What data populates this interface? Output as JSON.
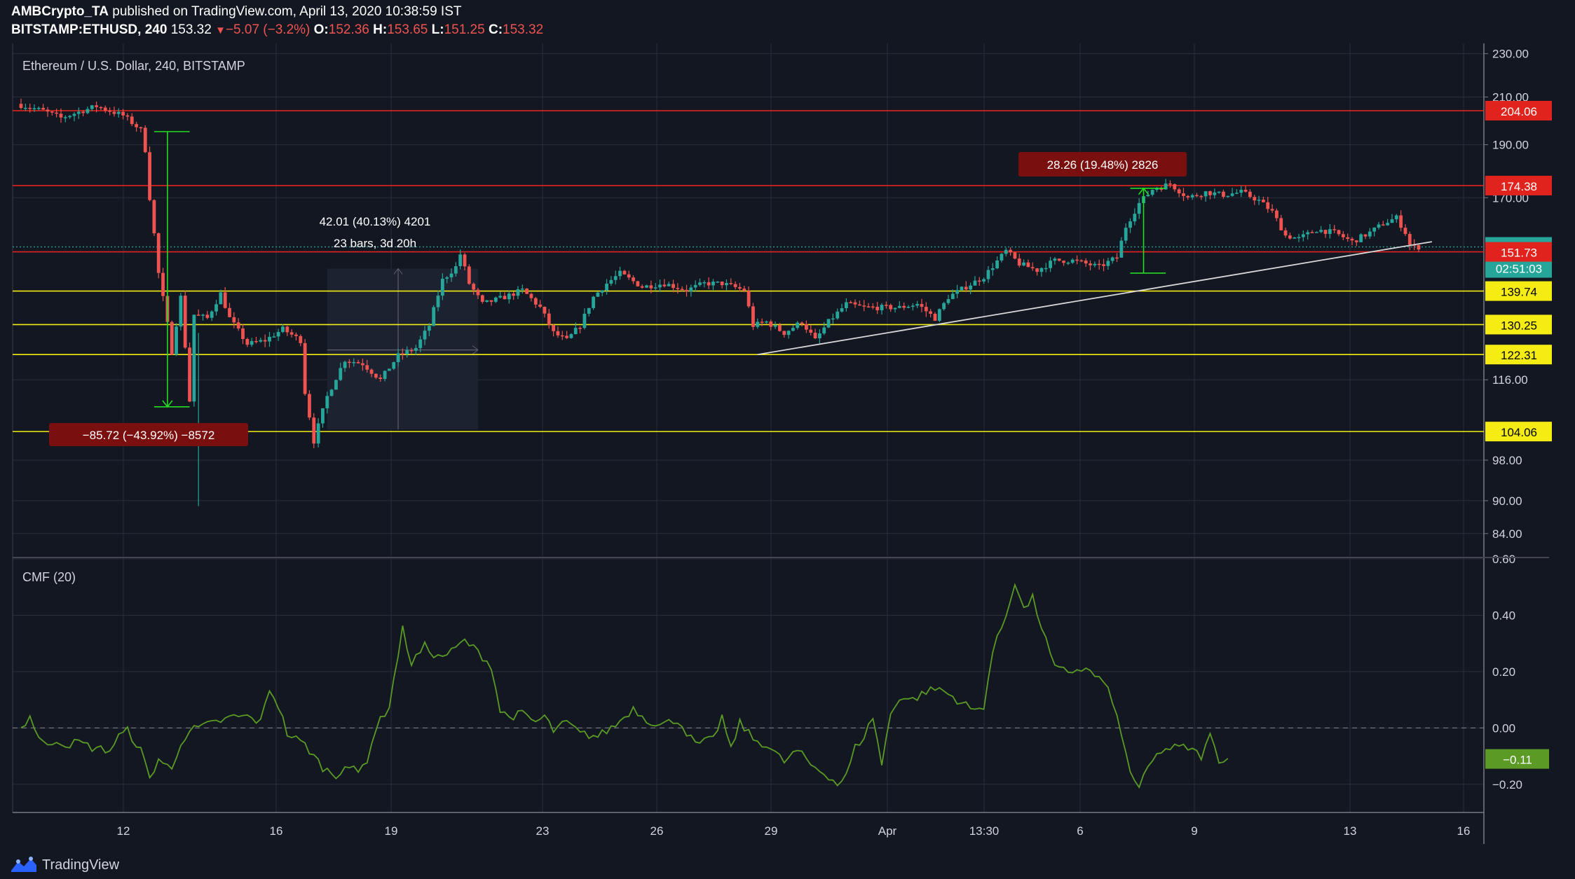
{
  "header": {
    "author": "AMBCrypto_TA",
    "published_text": "published on TradingView.com, April 13, 2020 10:38:59 IST",
    "symbol": "BITSTAMP:ETHUSD, 240",
    "last": "153.32",
    "change_marker": "▼",
    "change": "−5.07 (−3.2%)",
    "o_label": "O:",
    "o_value": "152.36",
    "h_label": "H:",
    "h_value": "153.65",
    "l_label": "L:",
    "l_value": "151.25",
    "c_label": "C:",
    "c_value": "153.32"
  },
  "brand": {
    "label": "TradingView"
  },
  "colors": {
    "background": "#131722",
    "grid": "#2a2e39",
    "up": "#26a69a",
    "down": "#ef5350",
    "resistance": "#e0241d",
    "support": "#f5ec14",
    "trendline": "#d8d8d8",
    "cmf": "#5a9a25",
    "measure_up": "#22dd22",
    "measure_down": "#22dd22",
    "measure_box": "#7a0f10"
  },
  "chart_data": [
    {
      "type": "candlestick",
      "title": "Ethereum / U.S. Dollar, 240, BITSTAMP",
      "x_ticks": [
        "12",
        "16",
        "19",
        "23",
        "26",
        "29",
        "Apr",
        "13:30",
        "6",
        "9",
        "13",
        "16"
      ],
      "y_ticks": [
        "230.00",
        "210.00",
        "190.00",
        "170.00",
        "116.00",
        "98.00",
        "90.00",
        "84.00"
      ],
      "y_range": [
        80,
        235
      ],
      "scale": "log",
      "grid": true,
      "price_labels": [
        {
          "value": "204.06",
          "style": "resistance"
        },
        {
          "value": "174.38",
          "style": "resistance"
        },
        {
          "value": "153.32",
          "style": "last"
        },
        {
          "value": "02:51:03",
          "style": "countdown"
        },
        {
          "value": "151.73",
          "style": "resistance"
        },
        {
          "value": "139.74",
          "style": "support"
        },
        {
          "value": "130.25",
          "style": "support"
        },
        {
          "value": "122.31",
          "style": "support"
        },
        {
          "value": "104.06",
          "style": "support"
        }
      ],
      "horizontal_lines": [
        {
          "price": 204.06,
          "style": "resistance"
        },
        {
          "price": 174.38,
          "style": "resistance"
        },
        {
          "price": 151.73,
          "style": "resistance"
        },
        {
          "price": 139.74,
          "style": "support"
        },
        {
          "price": 130.25,
          "style": "support"
        },
        {
          "price": 122.31,
          "style": "support"
        },
        {
          "price": 104.06,
          "style": "support"
        }
      ],
      "last_price": 153.32,
      "trendline": {
        "from": {
          "bar": 166,
          "price": 122.31
        },
        "to": {
          "bar": 318,
          "price": 155
        }
      },
      "annotations": [
        {
          "text": "−85.72 (−43.92%) −8572",
          "kind": "price-range",
          "bar_from": 30,
          "bar_to": 36,
          "price_from": 195.3,
          "price_to": 109.6
        },
        {
          "text": "42.01 (40.13%) 4201",
          "kind": "date-price-range",
          "bar_from": 66,
          "bar_to": 100,
          "price_from": 104.5,
          "price_to": 146.5
        },
        {
          "text": "23 bars, 3d 20h",
          "kind": "date-price-range"
        },
        {
          "text": "28.26 (19.48%) 2826",
          "kind": "price-range",
          "bar_from": 250,
          "bar_to": 256,
          "price_from": 145.1,
          "price_to": 173.4
        }
      ],
      "price_anchors": [
        [
          0,
          207
        ],
        [
          6,
          204
        ],
        [
          10,
          201
        ],
        [
          18,
          206
        ],
        [
          24,
          202
        ],
        [
          28,
          196
        ],
        [
          29,
          188
        ],
        [
          30,
          170
        ],
        [
          32,
          145
        ],
        [
          35,
          123
        ],
        [
          37,
          138
        ],
        [
          39,
          111
        ],
        [
          40,
          133
        ],
        [
          43,
          132
        ],
        [
          46,
          139
        ],
        [
          48,
          132
        ],
        [
          52,
          125
        ],
        [
          56,
          126
        ],
        [
          60,
          129
        ],
        [
          64,
          126
        ],
        [
          65,
          113
        ],
        [
          67,
          102
        ],
        [
          70,
          112
        ],
        [
          74,
          121
        ],
        [
          78,
          120
        ],
        [
          82,
          116
        ],
        [
          86,
          122
        ],
        [
          90,
          124
        ],
        [
          93,
          130
        ],
        [
          96,
          143
        ],
        [
          99,
          147
        ],
        [
          100,
          151
        ],
        [
          102,
          142
        ],
        [
          105,
          136
        ],
        [
          110,
          138
        ],
        [
          114,
          140
        ],
        [
          118,
          135
        ],
        [
          121,
          128
        ],
        [
          124,
          126
        ],
        [
          127,
          130
        ],
        [
          130,
          138
        ],
        [
          133,
          142
        ],
        [
          136,
          145
        ],
        [
          141,
          141
        ],
        [
          146,
          142
        ],
        [
          151,
          140
        ],
        [
          155,
          142
        ],
        [
          159,
          142
        ],
        [
          164,
          140
        ],
        [
          166,
          130
        ],
        [
          169,
          131
        ],
        [
          173,
          128
        ],
        [
          177,
          131
        ],
        [
          180,
          126
        ],
        [
          183,
          131
        ],
        [
          187,
          136
        ],
        [
          191,
          135
        ],
        [
          195,
          135
        ],
        [
          199,
          135
        ],
        [
          203,
          136
        ],
        [
          207,
          132
        ],
        [
          210,
          138
        ],
        [
          214,
          141
        ],
        [
          218,
          144
        ],
        [
          223,
          152
        ],
        [
          226,
          148
        ],
        [
          230,
          146
        ],
        [
          234,
          149
        ],
        [
          238,
          149
        ],
        [
          244,
          147
        ],
        [
          248,
          150
        ],
        [
          250,
          160
        ],
        [
          253,
          168
        ],
        [
          256,
          173
        ],
        [
          260,
          175
        ],
        [
          264,
          170
        ],
        [
          268,
          172
        ],
        [
          272,
          171
        ],
        [
          276,
          172
        ],
        [
          280,
          169
        ],
        [
          283,
          165
        ],
        [
          286,
          157
        ],
        [
          289,
          156
        ],
        [
          293,
          159
        ],
        [
          297,
          158
        ],
        [
          301,
          155
        ],
        [
          305,
          158
        ],
        [
          308,
          161
        ],
        [
          311,
          163
        ],
        [
          313,
          158
        ],
        [
          314,
          154
        ],
        [
          315,
          153.3
        ]
      ],
      "bars": 316
    },
    {
      "type": "line",
      "title": "CMF (20)",
      "y_ticks": [
        "0.60",
        "0.40",
        "0.20",
        "0.00",
        "−0.20"
      ],
      "y_range": [
        -0.3,
        0.6
      ],
      "zero_line": true,
      "last_value_label": "−0.11",
      "cmf_anchors": [
        [
          0,
          0.0
        ],
        [
          2,
          0.04
        ],
        [
          4,
          -0.03
        ],
        [
          6,
          -0.07
        ],
        [
          8,
          -0.04
        ],
        [
          10,
          -0.06
        ],
        [
          13,
          -0.05
        ],
        [
          16,
          -0.07
        ],
        [
          20,
          -0.08
        ],
        [
          22,
          -0.03
        ],
        [
          24,
          -0.01
        ],
        [
          27,
          -0.08
        ],
        [
          29,
          -0.18
        ],
        [
          31,
          -0.11
        ],
        [
          34,
          -0.15
        ],
        [
          36,
          -0.05
        ],
        [
          38,
          -0.01
        ],
        [
          40,
          0.0
        ],
        [
          44,
          0.02
        ],
        [
          48,
          0.04
        ],
        [
          51,
          0.04
        ],
        [
          54,
          0.02
        ],
        [
          56,
          0.14
        ],
        [
          58,
          0.08
        ],
        [
          60,
          -0.02
        ],
        [
          64,
          -0.06
        ],
        [
          68,
          -0.14
        ],
        [
          71,
          -0.17
        ],
        [
          73,
          -0.13
        ],
        [
          76,
          -0.16
        ],
        [
          78,
          -0.11
        ],
        [
          80,
          0.0
        ],
        [
          83,
          0.08
        ],
        [
          86,
          0.35
        ],
        [
          88,
          0.23
        ],
        [
          91,
          0.29
        ],
        [
          94,
          0.25
        ],
        [
          97,
          0.27
        ],
        [
          100,
          0.31
        ],
        [
          103,
          0.27
        ],
        [
          106,
          0.22
        ],
        [
          108,
          0.06
        ],
        [
          110,
          0.04
        ],
        [
          113,
          0.05
        ],
        [
          116,
          0.02
        ],
        [
          118,
          0.04
        ],
        [
          120,
          -0.01
        ],
        [
          123,
          0.02
        ],
        [
          126,
          -0.02
        ],
        [
          130,
          -0.03
        ],
        [
          134,
          0.01
        ],
        [
          138,
          0.07
        ],
        [
          141,
          0.03
        ],
        [
          144,
          0.01
        ],
        [
          148,
          0.03
        ],
        [
          152,
          -0.06
        ],
        [
          156,
          -0.04
        ],
        [
          158,
          0.04
        ],
        [
          160,
          -0.08
        ],
        [
          162,
          0.02
        ],
        [
          165,
          -0.04
        ],
        [
          168,
          -0.06
        ],
        [
          172,
          -0.12
        ],
        [
          175,
          -0.08
        ],
        [
          178,
          -0.13
        ],
        [
          182,
          -0.17
        ],
        [
          184,
          -0.2
        ],
        [
          186,
          -0.17
        ],
        [
          188,
          -0.07
        ],
        [
          190,
          -0.03
        ],
        [
          192,
          0.04
        ],
        [
          194,
          -0.13
        ],
        [
          196,
          0.05
        ],
        [
          198,
          0.11
        ],
        [
          201,
          0.1
        ],
        [
          204,
          0.13
        ],
        [
          207,
          0.14
        ],
        [
          210,
          0.11
        ],
        [
          213,
          0.08
        ],
        [
          215,
          0.06
        ],
        [
          217,
          0.08
        ],
        [
          219,
          0.27
        ],
        [
          222,
          0.4
        ],
        [
          224,
          0.52
        ],
        [
          226,
          0.42
        ],
        [
          228,
          0.46
        ],
        [
          231,
          0.31
        ],
        [
          233,
          0.21
        ],
        [
          236,
          0.2
        ],
        [
          239,
          0.21
        ],
        [
          241,
          0.2
        ],
        [
          244,
          0.16
        ],
        [
          246,
          0.1
        ],
        [
          248,
          -0.03
        ],
        [
          250,
          -0.15
        ],
        [
          252,
          -0.22
        ],
        [
          254,
          -0.14
        ],
        [
          257,
          -0.08
        ],
        [
          260,
          -0.07
        ],
        [
          263,
          -0.07
        ],
        [
          266,
          -0.1
        ],
        [
          268,
          -0.03
        ],
        [
          270,
          -0.11
        ],
        [
          272,
          -0.11
        ]
      ]
    }
  ]
}
